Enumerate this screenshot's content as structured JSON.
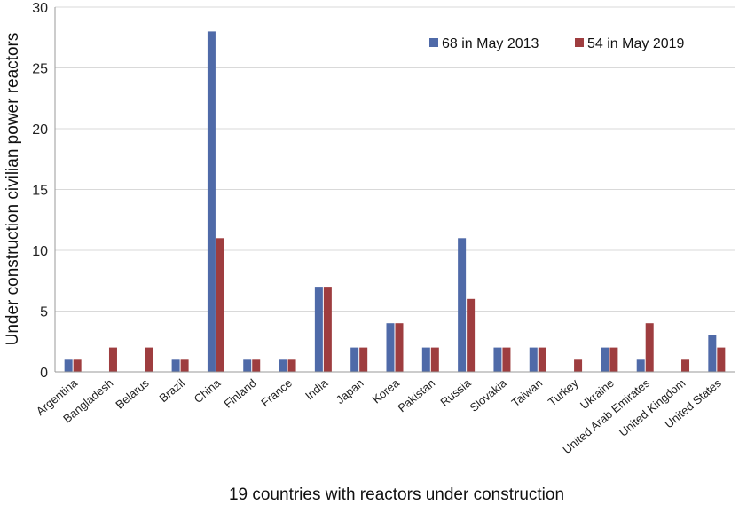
{
  "chart_data": {
    "type": "bar",
    "title": "",
    "xlabel": "19 countries with reactors under construction",
    "ylabel": "Under construction civilian power reactors",
    "ylim": [
      0,
      30
    ],
    "yticks": [
      0,
      5,
      10,
      15,
      20,
      25,
      30
    ],
    "grid": true,
    "legend_position": "top-right",
    "categories": [
      "Argentina",
      "Bangladesh",
      "Belarus",
      "Brazil",
      "China",
      "Finland",
      "France",
      "India",
      "Japan",
      "Korea",
      "Pakistan",
      "Russia",
      "Slovakia",
      "Taiwan",
      "Turkey",
      "Ukraine",
      "United Arab Emirates",
      "United Kingdom",
      "United States"
    ],
    "series": [
      {
        "name": "68 in May 2013",
        "color": "#4f6aa8",
        "values": [
          1,
          0,
          0,
          1,
          28,
          1,
          1,
          7,
          2,
          4,
          2,
          11,
          2,
          2,
          0,
          2,
          1,
          0,
          3
        ]
      },
      {
        "name": "54 in May 2019",
        "color": "#9e3d3f",
        "values": [
          1,
          2,
          2,
          1,
          11,
          1,
          1,
          7,
          2,
          4,
          2,
          6,
          2,
          2,
          1,
          2,
          4,
          1,
          2
        ]
      }
    ]
  }
}
